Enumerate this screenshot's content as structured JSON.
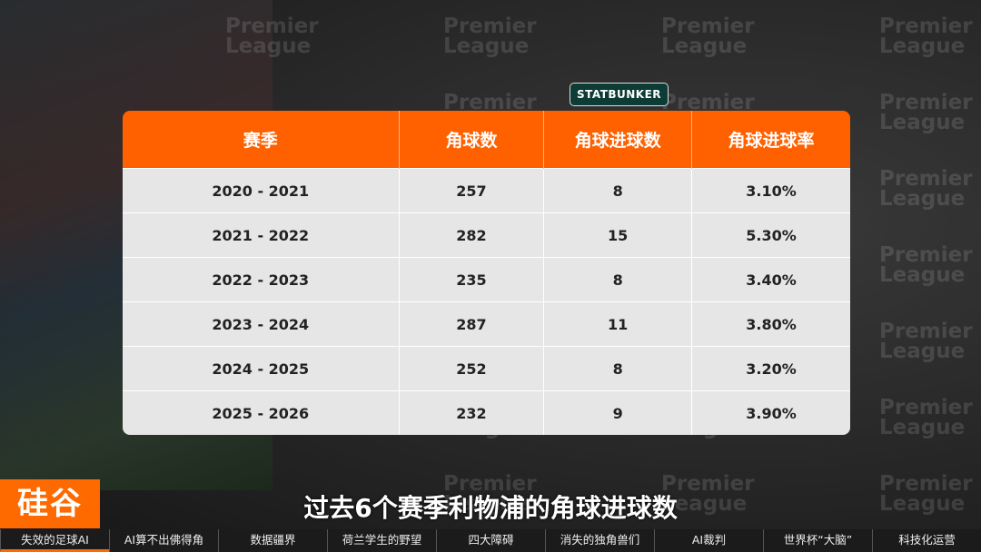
{
  "badge": "STATBUNKER",
  "watermark": {
    "line1": "Premier",
    "line2": "League"
  },
  "table": {
    "header": [
      "赛季",
      "角球数",
      "角球进球数",
      "角球进球率"
    ],
    "rows": [
      [
        "2020 - 2021",
        257,
        8,
        "3.10%"
      ],
      [
        "2021 - 2022",
        282,
        15,
        "5.30%"
      ],
      [
        "2022 - 2023",
        235,
        8,
        "3.40%"
      ],
      [
        "2023 - 2024",
        287,
        11,
        "3.80%"
      ],
      [
        "2024 - 2025",
        252,
        8,
        "3.20%"
      ],
      [
        "2025 - 2026",
        232,
        9,
        "3.90%"
      ]
    ]
  },
  "subtitle": "过去6个赛季利物浦的角球进球数",
  "logo": "硅谷",
  "nav": [
    "失效的足球AI",
    "AI算不出佛得角",
    "数据疆界",
    "荷兰学生的野望",
    "四大障碍",
    "消失的独角兽们",
    "AI裁判",
    "世界杯“大脑”",
    "科技化运营"
  ]
}
